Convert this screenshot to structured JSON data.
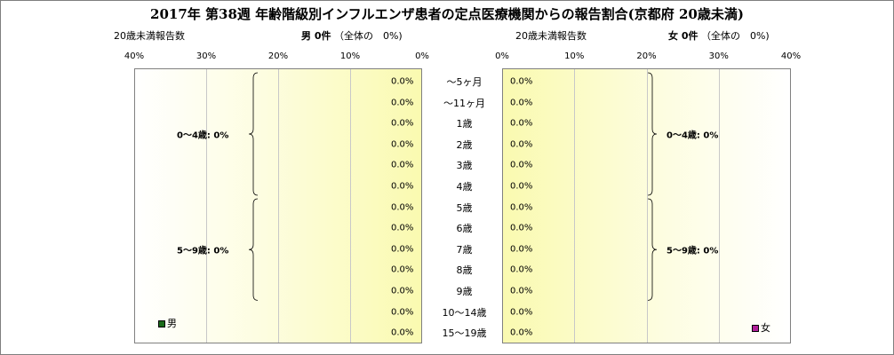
{
  "title": "2017年 第38週 年齢階級別インフルエンザ患者の定点医療機関からの報告割合(京都府 20歳未満)",
  "male_header": {
    "left_label": "20歳未満報告数",
    "count_label": "男 0件",
    "share_label": "（全体の　0%)"
  },
  "female_header": {
    "left_label": "20歳未満報告数",
    "count_label": "女 0件",
    "share_label": "（全体の　0%)"
  },
  "chart_data": {
    "type": "bar",
    "orientation": "horizontal-butterfly",
    "categories": [
      "～5ヶ月",
      "～11ヶ月",
      "1歳",
      "2歳",
      "3歳",
      "4歳",
      "5歳",
      "6歳",
      "7歳",
      "8歳",
      "9歳",
      "10～14歳",
      "15～19歳"
    ],
    "series": [
      {
        "name": "男",
        "color": "#1a6b1a",
        "values": [
          0,
          0,
          0,
          0,
          0,
          0,
          0,
          0,
          0,
          0,
          0,
          0,
          0
        ],
        "labels": [
          "0.0%",
          "0.0%",
          "0.0%",
          "0.0%",
          "0.0%",
          "0.0%",
          "0.0%",
          "0.0%",
          "0.0%",
          "0.0%",
          "0.0%",
          "0.0%",
          "0.0%"
        ]
      },
      {
        "name": "女",
        "color": "#b0209a",
        "values": [
          0,
          0,
          0,
          0,
          0,
          0,
          0,
          0,
          0,
          0,
          0,
          0,
          0
        ],
        "labels": [
          "0.0%",
          "0.0%",
          "0.0%",
          "0.0%",
          "0.0%",
          "0.0%",
          "0.0%",
          "0.0%",
          "0.0%",
          "0.0%",
          "0.0%",
          "0.0%",
          "0.0%"
        ]
      }
    ],
    "x_range": [
      0,
      40
    ],
    "male_ticks": [
      "40%",
      "30%",
      "20%",
      "10%",
      "0%"
    ],
    "female_ticks": [
      "0%",
      "10%",
      "20%",
      "30%",
      "40%"
    ],
    "groups": [
      {
        "label": "0～4歳: 0%",
        "from": 0,
        "to": 5
      },
      {
        "label": "5～9歳: 0%",
        "from": 6,
        "to": 10
      }
    ],
    "grid": true,
    "legend_position": "bottom-inside"
  }
}
